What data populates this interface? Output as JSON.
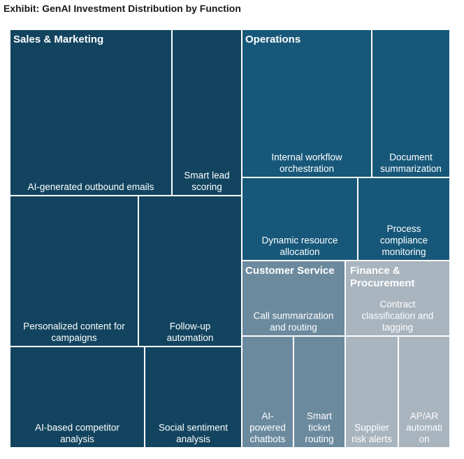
{
  "title": "Exhibit: GenAI Investment Distribution by Function",
  "chart_data": {
    "type": "treemap",
    "groups": [
      {
        "name": "Sales & Marketing",
        "color": "#12445F",
        "items": [
          {
            "label": "AI-generated outbound emails"
          },
          {
            "label": "Smart lead scoring"
          },
          {
            "label": "Personalized content for campaigns"
          },
          {
            "label": "Follow-up automation"
          },
          {
            "label": "AI-based competitor analysis"
          },
          {
            "label": "Social sentiment analysis"
          }
        ]
      },
      {
        "name": "Operations",
        "color": "#17587A",
        "items": [
          {
            "label": "Internal workflow orchestration"
          },
          {
            "label": "Document summarization"
          },
          {
            "label": "Dynamic resource allocation"
          },
          {
            "label": "Process compliance monitoring"
          }
        ]
      },
      {
        "name": "Customer Service",
        "color": "#6C8A9E",
        "items": [
          {
            "label": "Call summarization and routing"
          },
          {
            "label": "AI-powered chatbots"
          },
          {
            "label": "Smart ticket routing"
          }
        ]
      },
      {
        "name": "Finance & Procurement",
        "color": "#A8B4BE",
        "items": [
          {
            "label": "Contract classification and tagging"
          },
          {
            "label": "Supplier risk alerts"
          },
          {
            "label": "AP/AR automation"
          }
        ]
      }
    ]
  }
}
